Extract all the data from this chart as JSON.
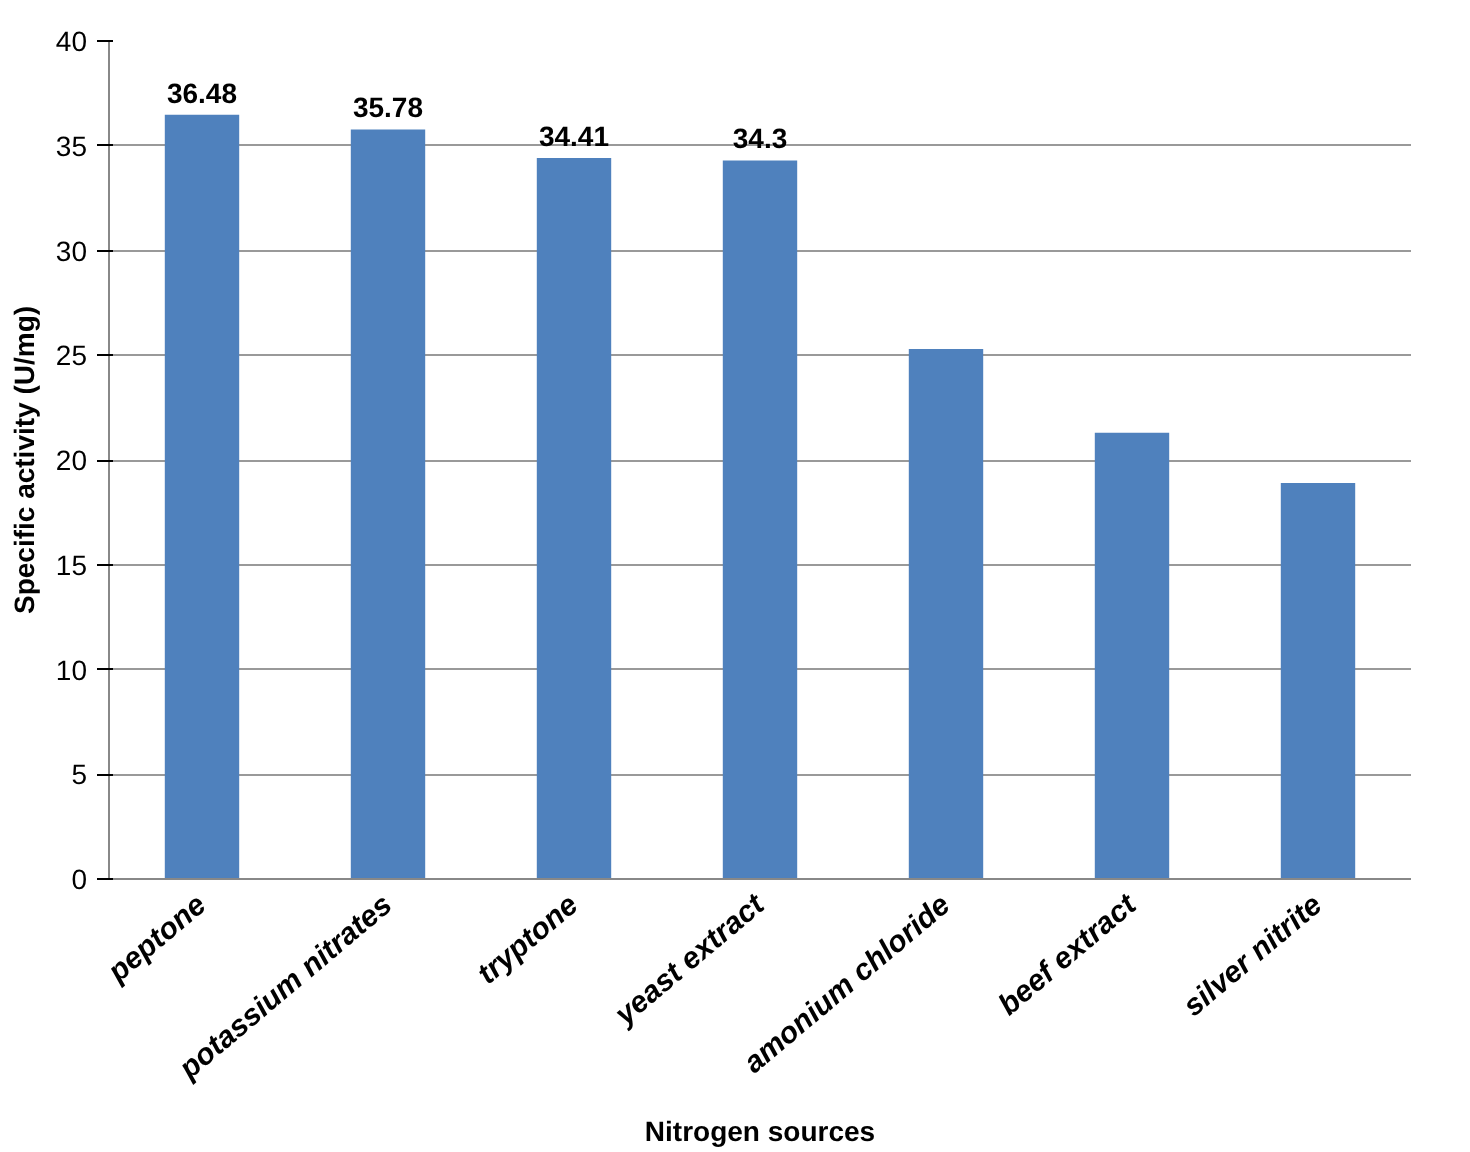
{
  "chart_data": {
    "type": "bar",
    "xlabel": "Nitrogen sources",
    "ylabel": "Specific activity (U/mg)",
    "categories": [
      "peptone",
      "potassium nitrates",
      "tryptone",
      "yeast extract",
      "amonium chloride",
      "beef extract",
      "silver nitrite"
    ],
    "values": [
      36.48,
      35.78,
      34.41,
      34.3,
      25.3,
      21.3,
      18.9
    ],
    "value_labels": [
      "36.48",
      "35.78",
      "34.41",
      "34.3",
      null,
      null,
      null
    ],
    "color": "#4f81bd",
    "ylim": [
      0,
      40
    ],
    "yticks": [
      0,
      5,
      10,
      15,
      20,
      25,
      30,
      35,
      40
    ],
    "grid": "y"
  }
}
